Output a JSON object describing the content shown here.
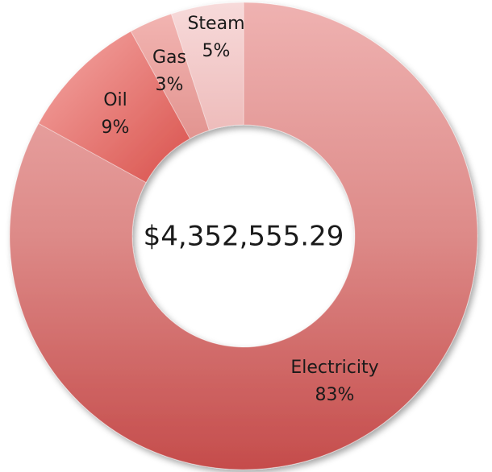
{
  "chart_data": {
    "type": "pie",
    "donut": true,
    "center_label": "$4,352,555.29",
    "legend": "none",
    "slices": [
      {
        "label": "Electricity",
        "value": 83,
        "value_label": "83%",
        "color": "#c8504f"
      },
      {
        "label": "Oil",
        "value": 9,
        "value_label": "9%",
        "color": "#e06a64"
      },
      {
        "label": "Gas",
        "value": 3,
        "value_label": "3%",
        "color": "#e99b97"
      },
      {
        "label": "Steam",
        "value": 5,
        "value_label": "5%",
        "color": "#f2c4c3"
      }
    ]
  }
}
